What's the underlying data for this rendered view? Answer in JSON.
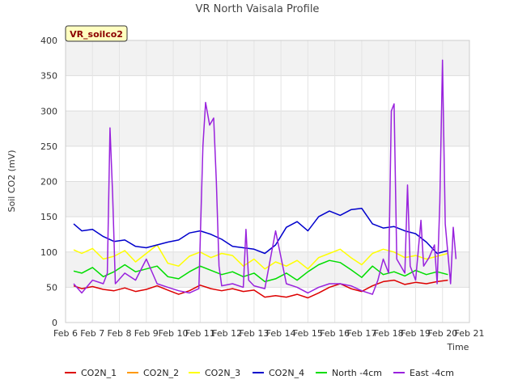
{
  "chart_data": {
    "type": "line",
    "title": "VR North Vaisala Profile",
    "badge": "VR_soilco2",
    "xlabel": "Time",
    "ylabel": "Soil CO2 (mV)",
    "ylim": [
      0,
      400
    ],
    "yticks": [
      0,
      50,
      100,
      150,
      200,
      250,
      300,
      350,
      400
    ],
    "xlim": [
      6,
      21
    ],
    "xticks": [
      6,
      7,
      8,
      9,
      10,
      11,
      12,
      13,
      14,
      15,
      16,
      17,
      18,
      19,
      20,
      21
    ],
    "xtick_labels": [
      "Feb 6",
      "Feb 7",
      "Feb 8",
      "Feb 9",
      "Feb 10",
      "Feb 11",
      "Feb 12",
      "Feb 13",
      "Feb 14",
      "Feb 15",
      "Feb 16",
      "Feb 17",
      "Feb 18",
      "Feb 19",
      "Feb 20",
      "Feb 21"
    ],
    "grid": true,
    "legend_position": "bottom",
    "series": [
      {
        "name": "CO2N_1",
        "color": "#dd0000",
        "x": [
          6.3,
          6.6,
          7.0,
          7.4,
          7.8,
          8.2,
          8.6,
          9.0,
          9.4,
          9.8,
          10.2,
          10.6,
          11.0,
          11.4,
          11.8,
          12.2,
          12.6,
          13.0,
          13.4,
          13.8,
          14.2,
          14.6,
          15.0,
          15.4,
          15.8,
          16.2,
          16.6,
          17.0,
          17.4,
          17.8,
          18.2,
          18.6,
          19.0,
          19.4,
          19.8,
          20.2
        ],
        "y": [
          52,
          48,
          51,
          47,
          45,
          49,
          44,
          47,
          52,
          46,
          40,
          45,
          53,
          48,
          45,
          48,
          44,
          46,
          36,
          38,
          36,
          40,
          35,
          42,
          50,
          55,
          48,
          44,
          52,
          58,
          60,
          54,
          57,
          55,
          58,
          60
        ]
      },
      {
        "name": "CO2N_2",
        "color": "#ff9900",
        "x": [],
        "y": []
      },
      {
        "name": "CO2N_3",
        "color": "#ffff00",
        "x": [
          6.3,
          6.6,
          7.0,
          7.4,
          7.8,
          8.2,
          8.6,
          9.0,
          9.4,
          9.8,
          10.2,
          10.6,
          11.0,
          11.4,
          11.8,
          12.2,
          12.6,
          13.0,
          13.4,
          13.8,
          14.2,
          14.6,
          15.0,
          15.4,
          15.8,
          16.2,
          16.6,
          17.0,
          17.4,
          17.8,
          18.2,
          18.6,
          19.0,
          19.4,
          19.8,
          20.2
        ],
        "y": [
          103,
          98,
          105,
          90,
          94,
          102,
          86,
          98,
          110,
          84,
          80,
          94,
          100,
          92,
          98,
          95,
          80,
          90,
          76,
          86,
          80,
          88,
          76,
          92,
          98,
          104,
          92,
          82,
          98,
          104,
          100,
          92,
          95,
          90,
          94,
          98
        ]
      },
      {
        "name": "CO2N_4",
        "color": "#0000cc",
        "x": [
          6.3,
          6.6,
          7.0,
          7.4,
          7.8,
          8.2,
          8.6,
          9.0,
          9.4,
          9.8,
          10.2,
          10.6,
          11.0,
          11.4,
          11.8,
          12.2,
          12.6,
          13.0,
          13.4,
          13.8,
          14.2,
          14.6,
          15.0,
          15.4,
          15.8,
          16.2,
          16.6,
          17.0,
          17.4,
          17.8,
          18.2,
          18.6,
          19.0,
          19.4,
          19.8,
          20.2
        ],
        "y": [
          140,
          130,
          132,
          122,
          115,
          117,
          108,
          106,
          110,
          114,
          117,
          127,
          130,
          125,
          118,
          108,
          106,
          104,
          98,
          110,
          135,
          143,
          130,
          150,
          158,
          152,
          160,
          162,
          140,
          134,
          136,
          130,
          126,
          114,
          98,
          102
        ]
      },
      {
        "name": "North -4cm",
        "color": "#00dd00",
        "x": [
          6.3,
          6.6,
          7.0,
          7.4,
          7.8,
          8.2,
          8.6,
          9.0,
          9.4,
          9.8,
          10.2,
          10.6,
          11.0,
          11.4,
          11.8,
          12.2,
          12.6,
          13.0,
          13.4,
          13.8,
          14.2,
          14.6,
          15.0,
          15.4,
          15.8,
          16.2,
          16.6,
          17.0,
          17.4,
          17.8,
          18.2,
          18.6,
          19.0,
          19.4,
          19.8,
          20.2
        ],
        "y": [
          73,
          70,
          78,
          65,
          72,
          82,
          72,
          76,
          80,
          65,
          62,
          72,
          80,
          74,
          68,
          72,
          65,
          70,
          58,
          62,
          70,
          60,
          72,
          82,
          88,
          85,
          75,
          64,
          80,
          68,
          72,
          66,
          74,
          68,
          72,
          68
        ]
      },
      {
        "name": "East -4cm",
        "color": "#9922dd",
        "x": [
          6.3,
          6.6,
          7.0,
          7.4,
          7.55,
          7.65,
          7.75,
          7.85,
          8.2,
          8.6,
          9.0,
          9.4,
          9.8,
          10.2,
          10.6,
          10.95,
          11.1,
          11.2,
          11.35,
          11.5,
          11.6,
          11.7,
          11.8,
          12.2,
          12.6,
          12.7,
          12.8,
          13.0,
          13.4,
          13.8,
          14.2,
          14.6,
          15.0,
          15.4,
          15.8,
          16.2,
          16.6,
          17.0,
          17.4,
          17.6,
          17.8,
          18.0,
          18.1,
          18.2,
          18.3,
          18.6,
          18.7,
          18.8,
          19.0,
          19.2,
          19.3,
          19.5,
          19.7,
          19.8,
          19.9,
          20.0,
          20.1,
          20.3,
          20.4,
          20.5
        ],
        "y": [
          55,
          42,
          60,
          55,
          70,
          276,
          180,
          55,
          70,
          60,
          90,
          55,
          50,
          45,
          42,
          48,
          250,
          312,
          280,
          290,
          200,
          80,
          52,
          55,
          50,
          132,
          60,
          52,
          48,
          130,
          55,
          50,
          42,
          50,
          55,
          55,
          52,
          45,
          40,
          60,
          90,
          70,
          300,
          310,
          90,
          70,
          195,
          80,
          60,
          145,
          80,
          92,
          110,
          55,
          170,
          372,
          140,
          55,
          135,
          90
        ]
      }
    ]
  }
}
